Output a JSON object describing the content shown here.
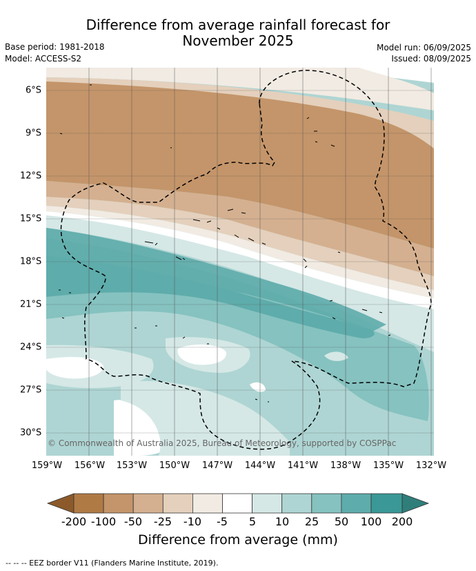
{
  "title_line1": "Difference from average rainfall forecast for",
  "title_line2": "November 2025",
  "base_period": "Base period: 1981-2018",
  "model": "Model: ACCESS-S2",
  "model_run": "Model run: 06/09/2025",
  "issued": "Issued: 08/09/2025",
  "copyright": "© Commonwealth of Australia 2025, Bureau of Meteorology, supported by COSPPac",
  "footnote": "--  --  -- EEZ border V11 (Flanders Marine Institute, 2019).",
  "lat_labels": [
    "6°S",
    "9°S",
    "12°S",
    "15°S",
    "18°S",
    "21°S",
    "24°S",
    "27°S",
    "30°S"
  ],
  "lon_labels": [
    "159°W",
    "156°W",
    "153°W",
    "150°W",
    "147°W",
    "144°W",
    "141°W",
    "138°W",
    "135°W",
    "132°W"
  ],
  "colorbar": {
    "title": "Difference from average (mm)",
    "ticks": [
      "-200",
      "-100",
      "-50",
      "-25",
      "-10",
      "-5",
      "5",
      "10",
      "25",
      "50",
      "100",
      "200"
    ],
    "colors": {
      "lt_-200": "#8c5a2a",
      "-200_-100": "#b07a45",
      "-100_-50": "#c4956a",
      "-50_-25": "#d4b090",
      "-25_-10": "#e4d0bc",
      "-10_-5": "#f1ebe3",
      "-5_5": "#ffffff",
      "5_10": "#d5e8e6",
      "10_25": "#aed5d3",
      "25_50": "#85c2c0",
      "50_100": "#5eacab",
      "100_200": "#3a9896",
      "gt_200": "#2f7e7a"
    }
  }
}
